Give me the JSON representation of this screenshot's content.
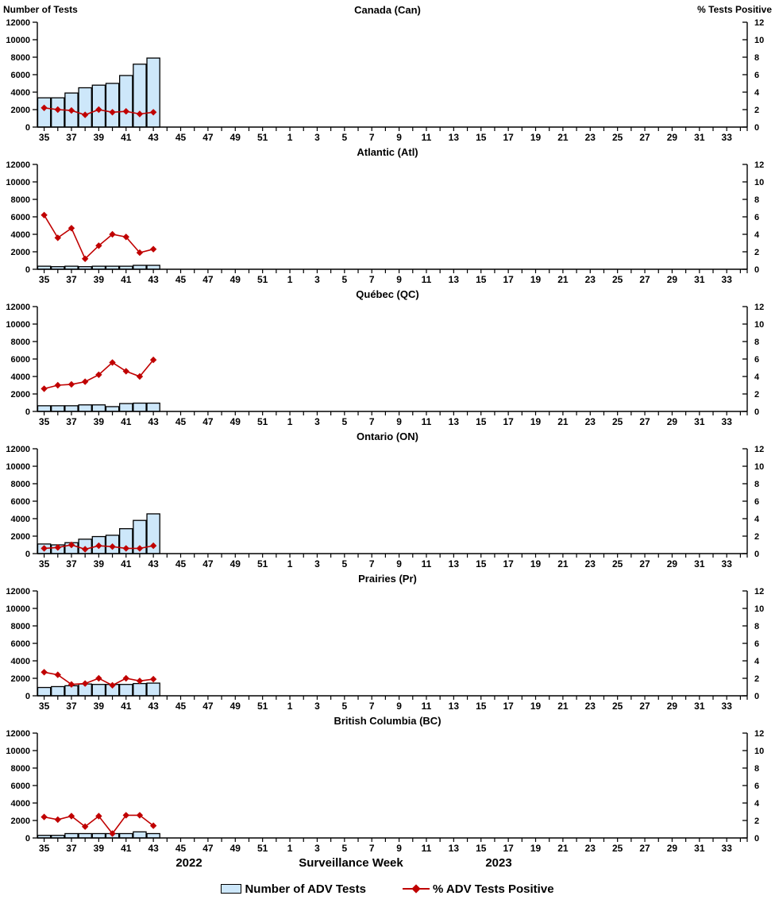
{
  "axis_titles": {
    "left": "Number of Tests",
    "right": "% Tests Positive"
  },
  "footer": {
    "year_left": "2022",
    "axis_title": "Surveillance Week",
    "year_right": "2023"
  },
  "legend": {
    "bars": "Number of ADV Tests",
    "line": "% ADV Tests Positive"
  },
  "colors": {
    "bar_fill": "#CDE7FA",
    "bar_stroke": "#000000",
    "line": "#C00000",
    "axis": "#000000",
    "text": "#000000"
  },
  "chart_data": {
    "type": "bar",
    "subtype": "combo bar + line, 6 stacked regional panels",
    "x_axis": {
      "title": "Surveillance Week",
      "span": "2022 week 35 through 2023 week 34",
      "slots": 52,
      "labeled_ticks": [
        "35",
        "37",
        "39",
        "41",
        "43",
        "45",
        "47",
        "49",
        "51",
        "1",
        "3",
        "5",
        "7",
        "9",
        "11",
        "13",
        "15",
        "17",
        "19",
        "21",
        "23",
        "25",
        "27",
        "29",
        "31",
        "33"
      ]
    },
    "y_left": {
      "title": "Number of Tests",
      "min": 0,
      "max": 12000,
      "step": 2000
    },
    "y_right": {
      "title": "% Tests Positive",
      "min": 0,
      "max": 12,
      "step": 2
    },
    "series_names": {
      "bars": "Number of ADV Tests",
      "line": "% ADV Tests Positive"
    },
    "data_weeks": [
      35,
      36,
      37,
      38,
      39,
      40,
      41,
      42,
      43
    ],
    "panels": [
      {
        "title": "Canada (Can)",
        "bars": [
          3350,
          3350,
          3900,
          4500,
          4800,
          5000,
          5900,
          7200,
          7900
        ],
        "line": [
          2.2,
          2.0,
          1.9,
          1.4,
          2.0,
          1.7,
          1.8,
          1.5,
          1.7
        ]
      },
      {
        "title": "Atlantic (Atl)",
        "bars": [
          350,
          300,
          350,
          300,
          350,
          350,
          350,
          450,
          450
        ],
        "line": [
          6.2,
          3.6,
          4.7,
          1.2,
          2.7,
          4.0,
          3.7,
          1.9,
          2.3
        ]
      },
      {
        "title": "Québec (QC)",
        "bars": [
          650,
          650,
          650,
          750,
          750,
          550,
          900,
          950,
          950
        ],
        "line": [
          2.6,
          3.0,
          3.1,
          3.4,
          4.2,
          5.6,
          4.6,
          4.0,
          5.9
        ]
      },
      {
        "title": "Ontario (ON)",
        "bars": [
          1100,
          1000,
          1250,
          1650,
          1950,
          2100,
          2850,
          3800,
          4550
        ],
        "line": [
          0.6,
          0.7,
          1.0,
          0.5,
          0.9,
          0.8,
          0.6,
          0.6,
          0.9
        ]
      },
      {
        "title": "Prairies (Pr)",
        "bars": [
          950,
          1050,
          1150,
          1350,
          1300,
          1300,
          1300,
          1400,
          1450
        ],
        "line": [
          2.7,
          2.4,
          1.3,
          1.4,
          2.0,
          1.2,
          2.0,
          1.7,
          1.9
        ]
      },
      {
        "title": "British Columbia (BC)",
        "bars": [
          300,
          300,
          500,
          500,
          500,
          500,
          500,
          700,
          500
        ],
        "line": [
          2.4,
          2.1,
          2.5,
          1.3,
          2.5,
          0.5,
          2.6,
          2.6,
          1.4
        ]
      }
    ]
  }
}
